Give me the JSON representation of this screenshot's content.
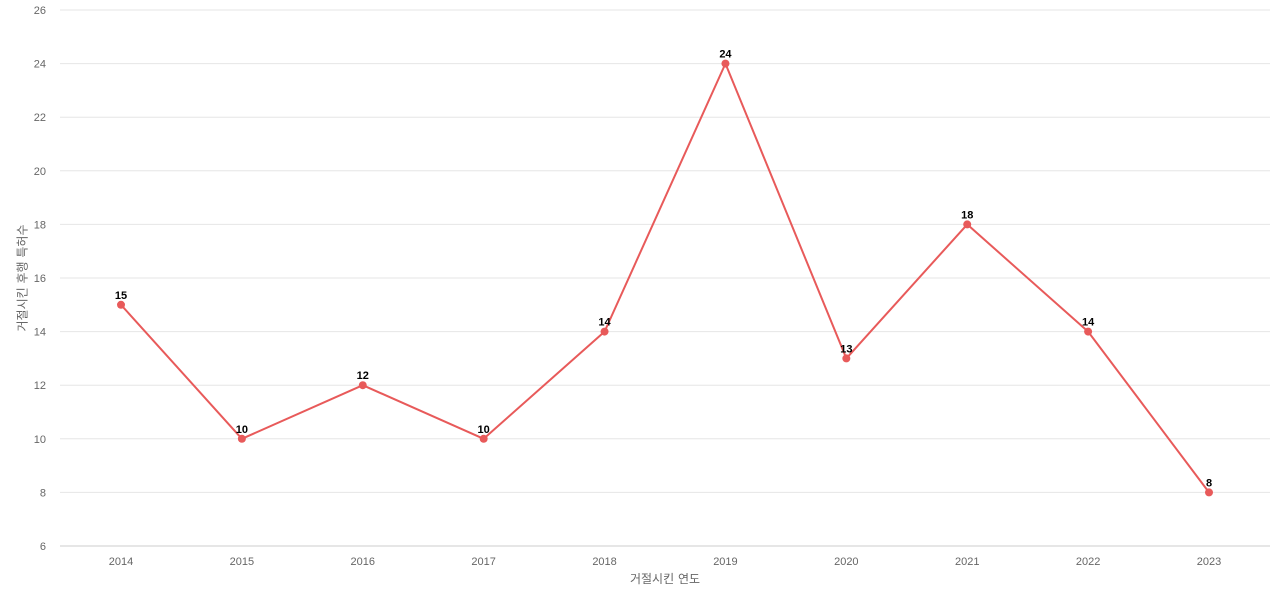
{
  "chart_data": {
    "type": "line",
    "title": "",
    "xlabel": "거절시킨 연도",
    "ylabel": "거절시킨 후행 특허수",
    "x": [
      "2014",
      "2015",
      "2016",
      "2017",
      "2018",
      "2019",
      "2020",
      "2021",
      "2022",
      "2023"
    ],
    "series": [
      {
        "values": [
          15,
          10,
          12,
          10,
          14,
          24,
          13,
          18,
          14,
          8
        ],
        "color": "#e85a5a"
      }
    ],
    "ylim": [
      6,
      26
    ],
    "yticks": [
      6,
      8,
      10,
      12,
      14,
      16,
      18,
      20,
      22,
      24,
      26
    ],
    "grid": true,
    "data_labels": true,
    "legend": "none"
  }
}
